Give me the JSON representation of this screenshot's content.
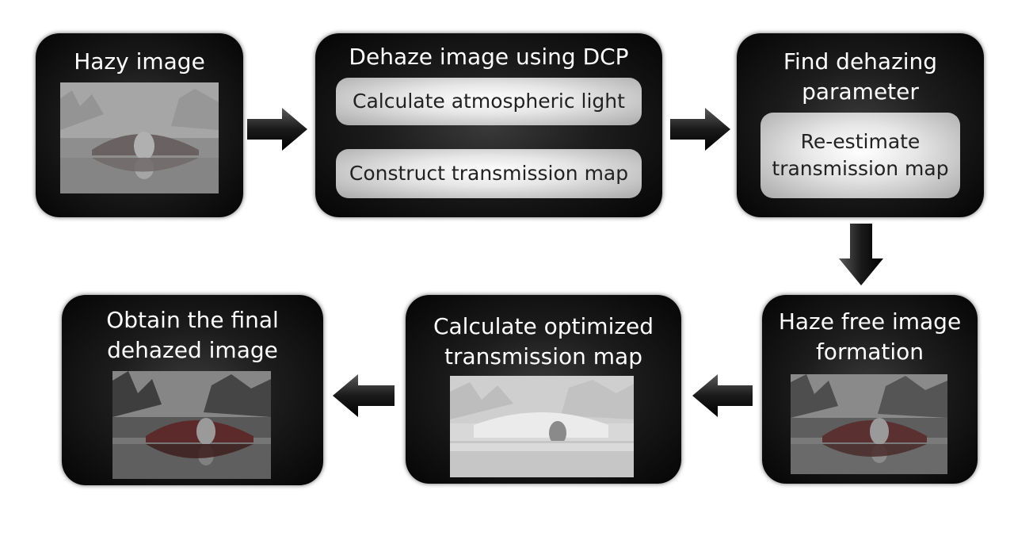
{
  "flow": {
    "hazy_image": {
      "title": "Hazy image"
    },
    "dehaze_dcp": {
      "title": "Dehaze image using DCP",
      "steps": [
        "Calculate atmospheric light",
        "Construct transmission map"
      ]
    },
    "find_param": {
      "title_line1": "Find dehazing",
      "title_line2": "parameter",
      "step_line1": "Re-estimate",
      "step_line2": "transmission map"
    },
    "haze_free": {
      "title_line1": "Haze free image",
      "title_line2": "formation"
    },
    "optimized_map": {
      "title_line1": "Calculate optimized",
      "title_line2": "transmission map"
    },
    "final": {
      "title_line1": "Obtain the final",
      "title_line2": "dehazed image"
    }
  },
  "icons": {
    "arrow_right": "arrow-right-icon",
    "arrow_down": "arrow-down-icon",
    "arrow_left": "arrow-left-icon"
  }
}
